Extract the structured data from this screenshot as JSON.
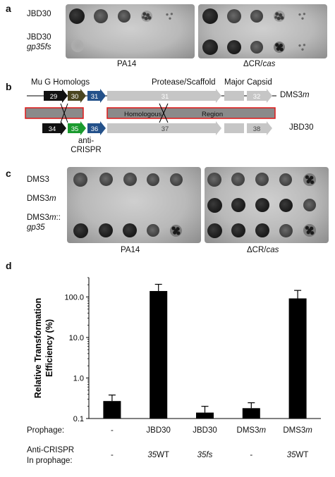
{
  "panel_a": {
    "label": "a",
    "row1": "JBD30",
    "row2_line1": "JBD30",
    "row2_line2": "gp35fs",
    "plate_left_label": "PA14",
    "plate_right_label": "ΔCR/",
    "plate_right_label_italic": "cas"
  },
  "panel_b": {
    "label": "b",
    "header_left": "Mu G Homologs",
    "header_mid": "Protease/Scaffold",
    "header_right": "Major Capsid",
    "top_genes": [
      "29",
      "30",
      "31",
      "31",
      "32"
    ],
    "bottom_genes": [
      "34",
      "35",
      "36",
      "37",
      "38"
    ],
    "top_phage": "DMS3",
    "top_phage_italic": "m",
    "bottom_phage": "JBD30",
    "homologous_label": "Homologous",
    "region_label": "Region",
    "anti_crispr_line1": "anti-",
    "anti_crispr_line2": "CRISPR",
    "colors": {
      "black": "#111111",
      "olive": "#4a4520",
      "blue": "#24518a",
      "green": "#1a9a2e",
      "gray": "#c6c6c6",
      "red": "#e01818"
    }
  },
  "panel_c": {
    "label": "c",
    "row1": "DMS3",
    "row2": "DMS3",
    "row2_italic": "m",
    "row3_line1": "DMS3",
    "row3_line1_italic": "m",
    "row3_line1_suffix": "::",
    "row3_line2": "gp35",
    "plate_left_label": "PA14",
    "plate_right_label": "ΔCR/",
    "plate_right_label_italic": "cas"
  },
  "panel_d": {
    "label": "d",
    "ylabel_line1": "Relative Transformation",
    "ylabel_line2": "Efficiency (%)",
    "row1_label": "Prophage:",
    "row2_line1": "Anti-CRISPR",
    "row2_line2": "In prophage:"
  },
  "chart_data": {
    "type": "bar",
    "yscale": "log",
    "ylim": [
      0.1,
      300
    ],
    "yticks": [
      "0.1",
      "1.0",
      "10.0",
      "100.0"
    ],
    "categories": [
      "-",
      "JBD30",
      "JBD30",
      "DMS3m",
      "DMS3m"
    ],
    "category_display": [
      {
        "text": "-",
        "italic_suffix": ""
      },
      {
        "text": "JBD30",
        "italic_suffix": ""
      },
      {
        "text": "JBD30",
        "italic_suffix": ""
      },
      {
        "text": "DMS3",
        "italic_suffix": "m"
      },
      {
        "text": "DMS3",
        "italic_suffix": "m"
      }
    ],
    "anti_crispr": [
      {
        "italic": "",
        "text": "-"
      },
      {
        "italic": "35",
        "text": "WT"
      },
      {
        "italic": "35fs",
        "text": ""
      },
      {
        "italic": "",
        "text": "-"
      },
      {
        "italic": "35",
        "text": "WT"
      }
    ],
    "values": [
      0.27,
      140,
      0.14,
      0.18,
      92
    ],
    "errors_upper": [
      0.38,
      205,
      0.2,
      0.245,
      145
    ],
    "bar_color": "#000000"
  }
}
